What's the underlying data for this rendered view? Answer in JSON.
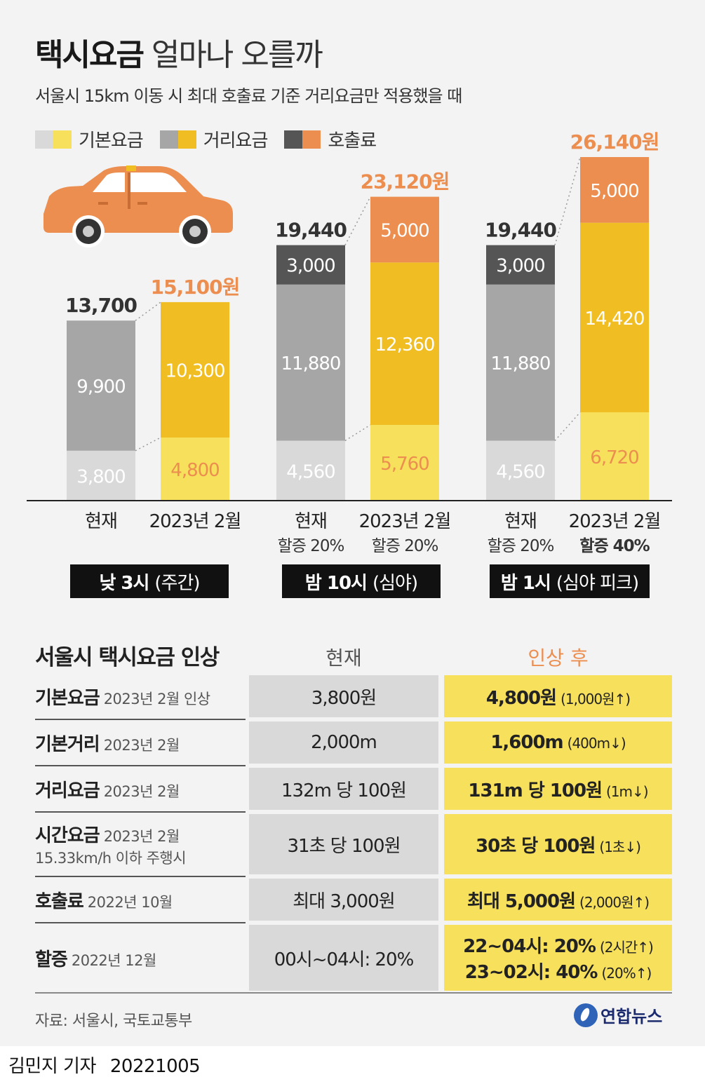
{
  "title": {
    "bold": "택시요금",
    "rest": "얼마나 오를까"
  },
  "subtitle": "서울시 15km 이동 시 최대 호출료 기준 거리요금만 적용했을 때",
  "legend": [
    {
      "label": "기본요금",
      "color_a": "#d9d9d9",
      "color_b": "#f6e05c"
    },
    {
      "label": "거리요금",
      "color_a": "#a6a6a6",
      "color_b": "#f0bd22"
    },
    {
      "label": "호출료",
      "color_a": "#555555",
      "color_b": "#ec8e4f"
    }
  ],
  "colors": {
    "base_now": "#d9d9d9",
    "dist_now": "#a6a6a6",
    "call_now": "#555555",
    "base_new": "#f6e05c",
    "dist_new": "#f0bd22",
    "call_new": "#ec8e4f",
    "accent": "#ec8e4f",
    "taxi": "#ec8e4f"
  },
  "chart_data": {
    "type": "bar",
    "stacked": true,
    "ylim": [
      0,
      26140
    ],
    "series_names": [
      "기본요금",
      "거리요금",
      "호출료"
    ],
    "bars": [
      {
        "label": "현재",
        "sublabel": "",
        "period": "now",
        "values": [
          3800,
          9900,
          0
        ],
        "value_labels": [
          "3,800",
          "9,900",
          ""
        ],
        "total": "13,700"
      },
      {
        "label": "2023년 2월",
        "sublabel": "",
        "period": "new",
        "values": [
          4800,
          10300,
          0
        ],
        "value_labels": [
          "4,800",
          "10,300",
          ""
        ],
        "total": "15,100원"
      },
      {
        "label": "현재",
        "sublabel": "할증 20%",
        "period": "now",
        "values": [
          4560,
          11880,
          3000
        ],
        "value_labels": [
          "4,560",
          "11,880",
          "3,000"
        ],
        "total": "19,440"
      },
      {
        "label": "2023년 2월",
        "sublabel": "할증 20%",
        "period": "new",
        "values": [
          5760,
          12360,
          5000
        ],
        "value_labels": [
          "5,760",
          "12,360",
          "5,000"
        ],
        "total": "23,120원"
      },
      {
        "label": "현재",
        "sublabel": "할증 20%",
        "period": "now",
        "values": [
          4560,
          11880,
          3000
        ],
        "value_labels": [
          "4,560",
          "11,880",
          "3,000"
        ],
        "total": "19,440"
      },
      {
        "label": "2023년 2월",
        "sublabel": "할증 40%",
        "period": "new",
        "values": [
          6720,
          14420,
          5000
        ],
        "value_labels": [
          "6,720",
          "14,420",
          "5,000"
        ],
        "total": "26,140원"
      }
    ],
    "groups": [
      {
        "bold": "낮 3시",
        "rest": "(주간)"
      },
      {
        "bold": "밤 10시",
        "rest": "(심야)"
      },
      {
        "bold": "밤 1시",
        "rest": "(심야 피크)"
      }
    ]
  },
  "table": {
    "title": "서울시 택시요금 인상",
    "col_now": "현재",
    "col_new": "인상 후",
    "rows": [
      {
        "name": "기본요금",
        "note": "2023년 2월 인상",
        "note2": "",
        "now": "3,800원",
        "new_main": "4,800원",
        "new_note": "(1,000원↑)",
        "new_main2": "",
        "new_note2": ""
      },
      {
        "name": "기본거리",
        "note": "2023년 2월",
        "note2": "",
        "now": "2,000m",
        "new_main": "1,600m",
        "new_note": "(400m↓)",
        "new_main2": "",
        "new_note2": ""
      },
      {
        "name": "거리요금",
        "note": "2023년 2월",
        "note2": "",
        "now": "132m 당 100원",
        "new_main": "131m 당 100원",
        "new_note": "(1m↓)",
        "new_main2": "",
        "new_note2": ""
      },
      {
        "name": "시간요금",
        "note": "2023년 2월",
        "note2": "15.33km/h 이하 주행시",
        "now": "31초 당 100원",
        "new_main": "30초 당 100원",
        "new_note": "(1초↓)",
        "new_main2": "",
        "new_note2": ""
      },
      {
        "name": "호출료",
        "note": "2022년 10월",
        "note2": "",
        "now": "최대 3,000원",
        "new_main": "최대 5,000원",
        "new_note": "(2,000원↑)",
        "new_main2": "",
        "new_note2": ""
      },
      {
        "name": "할증",
        "note": "2022년 12월",
        "note2": "",
        "now": "00시~04시: 20%",
        "new_main": "22~04시: 20%",
        "new_note": "(2시간↑)",
        "new_main2": "23~02시: 40%",
        "new_note2": "(20%↑)"
      }
    ]
  },
  "source": "자료: 서울시, 국토교통부",
  "logo": "연합뉴스",
  "byline": {
    "author": "김민지 기자",
    "date": "20221005"
  }
}
